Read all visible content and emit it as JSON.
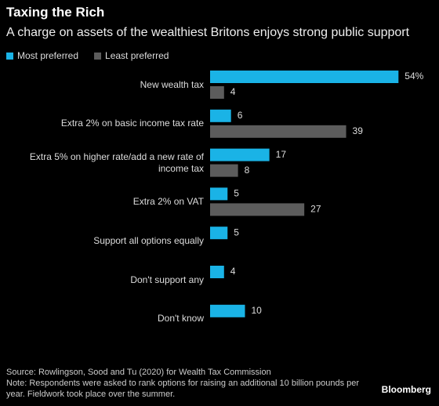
{
  "chart_data": {
    "type": "barh",
    "title": "Taxing the Rich",
    "subtitle": "A charge on assets of the wealthiest Britons enjoys strong public support",
    "categories": [
      "New wealth tax",
      "Extra 2% on basic income tax rate",
      "Extra 5% on higher rate/add a new rate of income tax",
      "Extra 2% on VAT",
      "Support all options equally",
      "Don't support any",
      "Don't know"
    ],
    "series": [
      {
        "name": "Most preferred",
        "color": "#1ab3e6",
        "values": [
          54,
          6,
          17,
          5,
          5,
          4,
          10
        ],
        "value_labels": [
          "54%",
          "6",
          "17",
          "5",
          "5",
          "4",
          "10"
        ]
      },
      {
        "name": "Least preferred",
        "color": "#5c5c5c",
        "values": [
          4,
          39,
          8,
          27,
          null,
          null,
          null
        ]
      }
    ],
    "legend": "top-left",
    "source": "Source: Rowlingson, Sood and Tu (2020) for Wealth Tax Commission",
    "note": "Note: Respondents were asked to rank options for raising an additional 10 billion pounds per year. Fieldwork took place over the summer.",
    "brand": "Bloomberg"
  }
}
